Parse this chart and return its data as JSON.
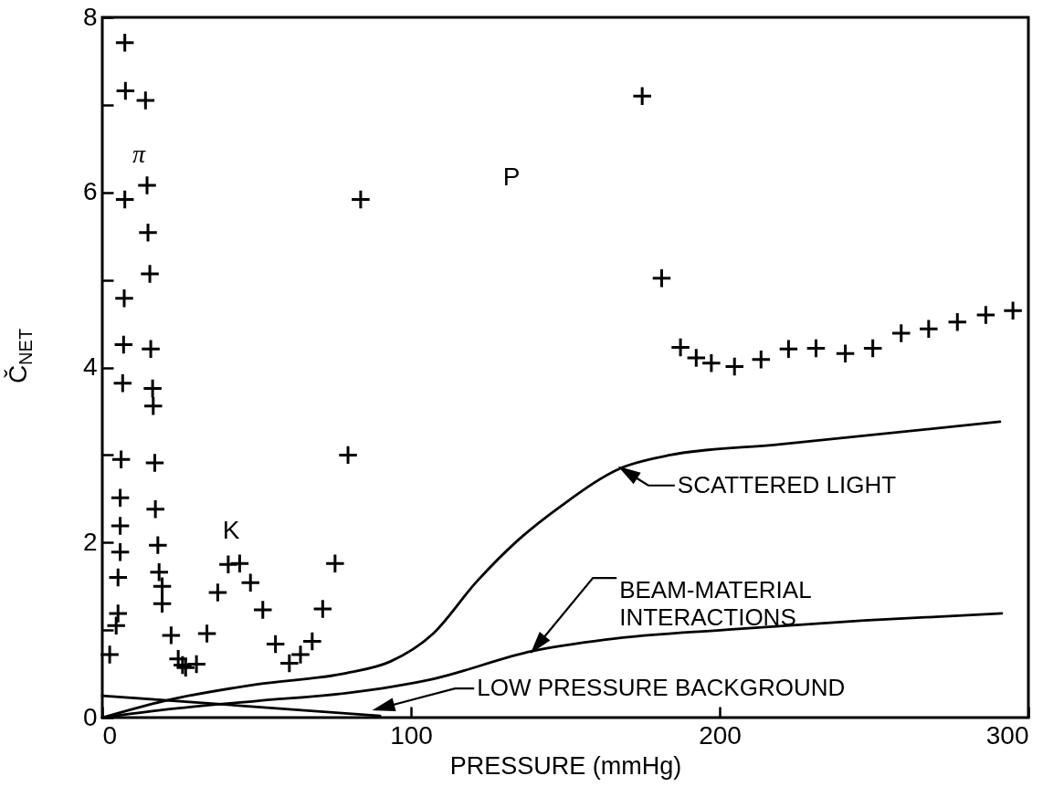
{
  "chart_data": {
    "type": "scatter",
    "xlabel": "PRESSURE (mmHg)",
    "ylabel": "Č$_{NET}$",
    "xlim": [
      0,
      300
    ],
    "ylim": [
      0,
      8
    ],
    "xticks": [
      0,
      100,
      200,
      300
    ],
    "yticks": [
      0,
      {
        "value": 1,
        "label": null
      },
      2,
      {
        "value": 3,
        "label": null
      },
      4,
      {
        "value": 5,
        "label": null
      },
      6,
      {
        "value": 7,
        "label": null
      },
      8
    ],
    "grid": false,
    "legend": "bottom right",
    "series": [
      {
        "marker": "cross",
        "color": "#000000",
        "x": [
          7.3,
          7.5,
          14,
          14.5,
          7.3,
          14.8,
          15.4,
          7.1,
          6.9,
          15.7,
          6.6,
          16.3,
          16.5,
          79.6,
          6.1,
          17,
          5.8,
          17.2,
          5.8,
          18,
          5.8,
          40.8,
          44.5,
          75.4,
          18.4,
          5.1,
          19.4,
          48,
          37.4,
          19.4,
          52,
          71.4,
          5.1,
          4.5,
          22.3,
          33.9,
          56.1,
          68,
          64.2,
          60.6,
          2.4,
          24.6,
          26,
          27,
          30.5,
          83.7,
          174.9,
          181.2,
          187.3,
          192.4,
          197.3,
          204.8,
          213.4,
          222.3,
          231.2,
          240.7,
          249.6,
          258.8,
          267.7,
          277,
          286.2,
          295
        ],
        "values": [
          7.71,
          7.16,
          7.05,
          6.08,
          5.92,
          5.54,
          5.07,
          4.79,
          4.26,
          4.21,
          3.82,
          3.76,
          3.56,
          3.0,
          2.95,
          2.91,
          2.51,
          2.38,
          2.19,
          1.97,
          1.89,
          1.75,
          1.76,
          1.76,
          1.66,
          1.6,
          1.5,
          1.54,
          1.43,
          1.3,
          1.23,
          1.24,
          1.19,
          1.05,
          0.94,
          0.96,
          0.84,
          0.87,
          0.72,
          0.62,
          0.72,
          0.67,
          0.6,
          0.57,
          0.61,
          5.92,
          7.1,
          5.02,
          4.23,
          4.11,
          4.05,
          4.01,
          4.09,
          4.21,
          4.22,
          4.16,
          4.22,
          4.39,
          4.44,
          4.52,
          4.6,
          4.65
        ]
      },
      {
        "type": "line",
        "name": "SCATTERED LIGHT",
        "color": "#000000",
        "line_style": "solid",
        "x": [
          0,
          20,
          50,
          79.3,
          93.3,
          107.2,
          121.2,
          135.1,
          149.1,
          168,
          184,
          219,
          290.8
        ],
        "values": [
          0,
          0.19,
          0.38,
          0.51,
          0.64,
          0.96,
          1.55,
          2.04,
          2.43,
          2.85,
          3.0,
          3.12,
          3.38
        ]
      },
      {
        "type": "line",
        "name": "BEAM-MATERIAL INTERACTIONS",
        "color": "#000000",
        "line_style": "solid",
        "x": [
          0,
          20,
          50,
          79.3,
          107,
          139.4,
          163,
          205,
          246.8,
          291.4
        ],
        "values": [
          0,
          0.09,
          0.19,
          0.28,
          0.44,
          0.76,
          0.89,
          1.01,
          1.11,
          1.19
        ]
      },
      {
        "type": "line",
        "name": "LOW PRESSURE BACKGROUND",
        "color": "#000000",
        "line_style": "solid",
        "x": [
          0,
          90
        ],
        "values": [
          0.25,
          0.02
        ]
      }
    ],
    "annotations": [
      "π",
      "K",
      "P"
    ]
  }
}
